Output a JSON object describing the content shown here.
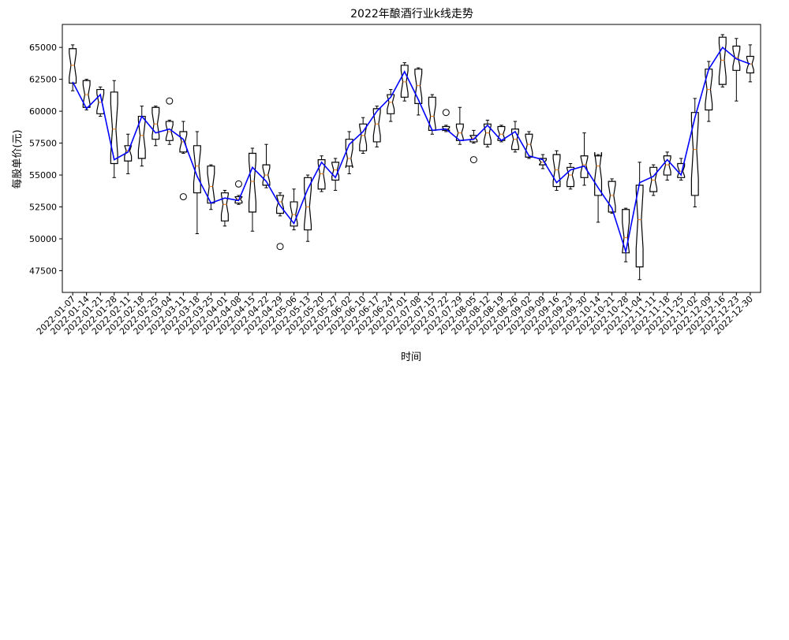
{
  "chart_data": {
    "type": "box",
    "title": "2022年酿酒行业k线走势",
    "xlabel": "时间",
    "ylabel": "每股单价(元)",
    "ylim": [
      45800,
      66800
    ],
    "yticks": [
      47500,
      50000,
      52500,
      55000,
      57500,
      60000,
      62500,
      65000
    ],
    "grid": false,
    "box_style": "notched",
    "colors": {
      "box": "#000000",
      "median": "#ff7f0e",
      "mean_line": "#0000ff"
    },
    "categories": [
      "2022-01-07",
      "2022-01-14",
      "2022-01-21",
      "2022-01-28",
      "2022-02-11",
      "2022-02-18",
      "2022-02-25",
      "2022-03-04",
      "2022-03-11",
      "2022-03-18",
      "2022-03-25",
      "2022-04-01",
      "2022-04-08",
      "2022-04-15",
      "2022-04-22",
      "2022-04-29",
      "2022-05-06",
      "2022-05-13",
      "2022-05-20",
      "2022-05-27",
      "2022-06-02",
      "2022-06-10",
      "2022-06-17",
      "2022-06-24",
      "2022-07-01",
      "2022-07-08",
      "2022-07-15",
      "2022-07-22",
      "2022-07-29",
      "2022-08-05",
      "2022-08-12",
      "2022-08-19",
      "2022-08-26",
      "2022-09-02",
      "2022-09-09",
      "2022-09-16",
      "2022-09-23",
      "2022-09-30",
      "2022-10-14",
      "2022-10-21",
      "2022-10-28",
      "2022-11-04",
      "2022-11-11",
      "2022-11-18",
      "2022-11-25",
      "2022-12-02",
      "2022-12-09",
      "2022-12-16",
      "2022-12-23",
      "2022-12-30"
    ],
    "boxes": [
      {
        "whislo": 61600,
        "q1": 62200,
        "med": 63600,
        "q3": 64900,
        "whishi": 65200,
        "fliers": []
      },
      {
        "whislo": 60100,
        "q1": 60300,
        "med": 61300,
        "q3": 62400,
        "whishi": 62500,
        "fliers": []
      },
      {
        "whislo": 59600,
        "q1": 59800,
        "med": 60700,
        "q3": 61700,
        "whishi": 61900,
        "fliers": []
      },
      {
        "whislo": 54800,
        "q1": 55900,
        "med": 58600,
        "q3": 61500,
        "whishi": 62400,
        "fliers": []
      },
      {
        "whislo": 55100,
        "q1": 56100,
        "med": 56900,
        "q3": 57300,
        "whishi": 58200,
        "fliers": []
      },
      {
        "whislo": 55700,
        "q1": 56300,
        "med": 58100,
        "q3": 59600,
        "whishi": 60400,
        "fliers": []
      },
      {
        "whislo": 57300,
        "q1": 57800,
        "med": 59000,
        "q3": 60300,
        "whishi": 60400,
        "fliers": []
      },
      {
        "whislo": 57400,
        "q1": 57700,
        "med": 58400,
        "q3": 59200,
        "whishi": 59300,
        "fliers": [
          60800
        ]
      },
      {
        "whislo": 56700,
        "q1": 56800,
        "med": 57600,
        "q3": 58400,
        "whishi": 59200,
        "fliers": [
          53300
        ]
      },
      {
        "whislo": 50400,
        "q1": 53600,
        "med": 55700,
        "q3": 57300,
        "whishi": 58400,
        "fliers": []
      },
      {
        "whislo": 52300,
        "q1": 52800,
        "med": 54100,
        "q3": 55700,
        "whishi": 55800,
        "fliers": []
      },
      {
        "whislo": 51000,
        "q1": 51400,
        "med": 52700,
        "q3": 53600,
        "whishi": 53800,
        "fliers": []
      },
      {
        "whislo": 52700,
        "q1": 52800,
        "med": 53100,
        "q3": 53300,
        "whishi": 53400,
        "fliers": [
          54300
        ]
      },
      {
        "whislo": 50600,
        "q1": 52100,
        "med": 54500,
        "q3": 56700,
        "whishi": 57100,
        "fliers": []
      },
      {
        "whislo": 54000,
        "q1": 54200,
        "med": 55000,
        "q3": 55800,
        "whishi": 57400,
        "fliers": []
      },
      {
        "whislo": 51800,
        "q1": 52000,
        "med": 52900,
        "q3": 53400,
        "whishi": 53600,
        "fliers": [
          49400
        ]
      },
      {
        "whislo": 50700,
        "q1": 51000,
        "med": 51900,
        "q3": 52900,
        "whishi": 53900,
        "fliers": []
      },
      {
        "whislo": 49800,
        "q1": 50700,
        "med": 52500,
        "q3": 54800,
        "whishi": 55000,
        "fliers": []
      },
      {
        "whislo": 53700,
        "q1": 53900,
        "med": 55100,
        "q3": 56200,
        "whishi": 56500,
        "fliers": []
      },
      {
        "whislo": 53800,
        "q1": 54600,
        "med": 55400,
        "q3": 56000,
        "whishi": 56300,
        "fliers": []
      },
      {
        "whislo": 55100,
        "q1": 55700,
        "med": 56300,
        "q3": 57800,
        "whishi": 58400,
        "fliers": []
      },
      {
        "whislo": 56700,
        "q1": 56900,
        "med": 58100,
        "q3": 59000,
        "whishi": 59500,
        "fliers": []
      },
      {
        "whislo": 57200,
        "q1": 57600,
        "med": 59000,
        "q3": 60200,
        "whishi": 60400,
        "fliers": []
      },
      {
        "whislo": 59200,
        "q1": 59800,
        "med": 60700,
        "q3": 61300,
        "whishi": 61700,
        "fliers": []
      },
      {
        "whislo": 60800,
        "q1": 61100,
        "med": 62300,
        "q3": 63600,
        "whishi": 63800,
        "fliers": []
      },
      {
        "whislo": 59700,
        "q1": 60600,
        "med": 62000,
        "q3": 63300,
        "whishi": 63400,
        "fliers": []
      },
      {
        "whislo": 58200,
        "q1": 58500,
        "med": 59600,
        "q3": 61100,
        "whishi": 61300,
        "fliers": []
      },
      {
        "whislo": 58400,
        "q1": 58500,
        "med": 58600,
        "q3": 58800,
        "whishi": 58900,
        "fliers": [
          59900
        ]
      },
      {
        "whislo": 57400,
        "q1": 57700,
        "med": 58300,
        "q3": 59000,
        "whishi": 60300,
        "fliers": []
      },
      {
        "whislo": 57500,
        "q1": 57600,
        "med": 57900,
        "q3": 58100,
        "whishi": 58500,
        "fliers": [
          56200
        ]
      },
      {
        "whislo": 57200,
        "q1": 57400,
        "med": 58300,
        "q3": 59000,
        "whishi": 59300,
        "fliers": []
      },
      {
        "whislo": 57600,
        "q1": 57700,
        "med": 58200,
        "q3": 58800,
        "whishi": 58900,
        "fliers": []
      },
      {
        "whislo": 56800,
        "q1": 57000,
        "med": 57800,
        "q3": 58600,
        "whishi": 59200,
        "fliers": []
      },
      {
        "whislo": 56300,
        "q1": 56400,
        "med": 57400,
        "q3": 58200,
        "whishi": 58400,
        "fliers": []
      },
      {
        "whislo": 55500,
        "q1": 55800,
        "med": 56000,
        "q3": 56300,
        "whishi": 56600,
        "fliers": []
      },
      {
        "whislo": 53800,
        "q1": 54100,
        "med": 55400,
        "q3": 56600,
        "whishi": 56900,
        "fliers": []
      },
      {
        "whislo": 53900,
        "q1": 54100,
        "med": 55000,
        "q3": 55600,
        "whishi": 55900,
        "fliers": []
      },
      {
        "whislo": 54200,
        "q1": 54800,
        "med": 55800,
        "q3": 56500,
        "whishi": 58300,
        "fliers": []
      },
      {
        "whislo": 51300,
        "q1": 53400,
        "med": 55700,
        "q3": 56500,
        "whishi": 56600,
        "fliers": []
      },
      {
        "whislo": 52000,
        "q1": 52100,
        "med": 53400,
        "q3": 54500,
        "whishi": 54700,
        "fliers": []
      },
      {
        "whislo": 48200,
        "q1": 48900,
        "med": 50100,
        "q3": 52300,
        "whishi": 52400,
        "fliers": []
      },
      {
        "whislo": 46800,
        "q1": 47800,
        "med": 51500,
        "q3": 54200,
        "whishi": 56000,
        "fliers": []
      },
      {
        "whislo": 53400,
        "q1": 53700,
        "med": 54600,
        "q3": 55600,
        "whishi": 55800,
        "fliers": []
      },
      {
        "whislo": 54600,
        "q1": 55000,
        "med": 55800,
        "q3": 56500,
        "whishi": 56800,
        "fliers": []
      },
      {
        "whislo": 54600,
        "q1": 54800,
        "med": 55300,
        "q3": 55900,
        "whishi": 56300,
        "fliers": []
      },
      {
        "whislo": 52500,
        "q1": 53400,
        "med": 57000,
        "q3": 59900,
        "whishi": 61000,
        "fliers": []
      },
      {
        "whislo": 59200,
        "q1": 60100,
        "med": 61700,
        "q3": 63300,
        "whishi": 63900,
        "fliers": []
      },
      {
        "whislo": 61900,
        "q1": 62100,
        "med": 64000,
        "q3": 65800,
        "whishi": 66000,
        "fliers": []
      },
      {
        "whislo": 60800,
        "q1": 63200,
        "med": 64200,
        "q3": 65100,
        "whishi": 65700,
        "fliers": []
      },
      {
        "whislo": 62300,
        "q1": 63000,
        "med": 63700,
        "q3": 64300,
        "whishi": 65200,
        "fliers": []
      }
    ],
    "series": [
      {
        "type": "line",
        "values": [
          62300,
          60200,
          61300,
          56200,
          56800,
          59600,
          58300,
          58600,
          57800,
          54900,
          52800,
          53200,
          53000,
          55600,
          54500,
          52600,
          51200,
          53900,
          56000,
          54800,
          57400,
          58400,
          60000,
          61100,
          63100,
          60900,
          58500,
          58600,
          57700,
          57800,
          58900,
          57700,
          58400,
          56500,
          56200,
          54400,
          55400,
          55700,
          54000,
          52400,
          49000,
          54400,
          54900,
          56200,
          55000,
          59500,
          63300,
          65000,
          64100,
          63700
        ]
      }
    ]
  }
}
